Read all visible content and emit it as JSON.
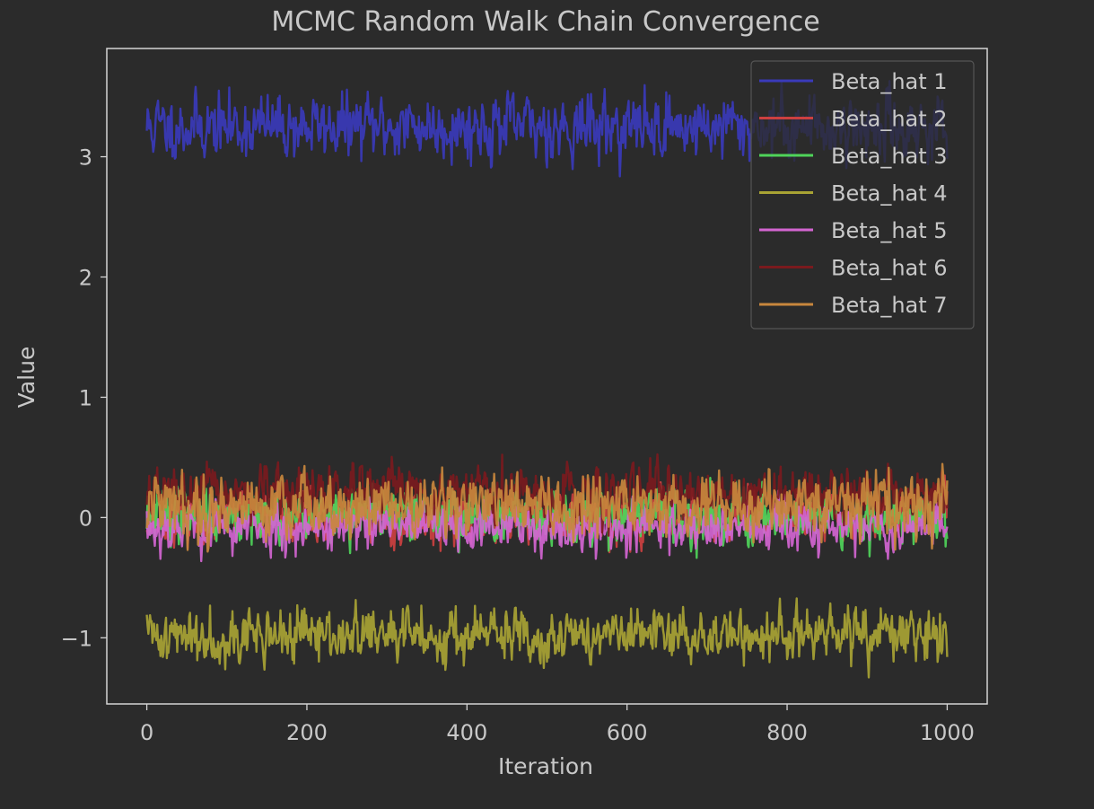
{
  "chart_data": {
    "type": "line",
    "title": "MCMC Random Walk Chain Convergence",
    "xlabel": "Iteration",
    "ylabel": "Value",
    "xlim": [
      -50,
      1050
    ],
    "ylim": [
      -1.55,
      3.9
    ],
    "xticks": [
      0,
      200,
      400,
      600,
      800,
      1000
    ],
    "yticks": [
      -1,
      0,
      1,
      2,
      3
    ],
    "xtick_labels": [
      "0",
      "200",
      "400",
      "600",
      "800",
      "1000"
    ],
    "ytick_labels": [
      "−1",
      "0",
      "1",
      "2",
      "3"
    ],
    "grid": false,
    "legend_position": "top-right",
    "theme": {
      "background": "#2b2b2b",
      "axes_color": "#d4d4d4",
      "text_color": "#c8c8c8",
      "legend_background": "#2b2b2b",
      "legend_border": "#555555"
    },
    "series": [
      {
        "name": "Beta_hat 1",
        "color": "#3a3aba",
        "mean": 3.25,
        "sd": 0.13,
        "seed": 11
      },
      {
        "name": "Beta_hat 2",
        "color": "#cc4040",
        "mean": 0.0,
        "sd": 0.1,
        "seed": 23
      },
      {
        "name": "Beta_hat 3",
        "color": "#4fd45a",
        "mean": 0.02,
        "sd": 0.11,
        "seed": 37
      },
      {
        "name": "Beta_hat 4",
        "color": "#a8a334",
        "mean": -0.98,
        "sd": 0.11,
        "seed": 41
      },
      {
        "name": "Beta_hat 5",
        "color": "#d365d1",
        "mean": -0.08,
        "sd": 0.1,
        "seed": 53
      },
      {
        "name": "Beta_hat 6",
        "color": "#7a1a1e",
        "mean": 0.2,
        "sd": 0.1,
        "seed": 67
      },
      {
        "name": "Beta_hat 7",
        "color": "#c8873d",
        "mean": 0.1,
        "sd": 0.13,
        "seed": 79
      }
    ],
    "n_iterations": 1000
  }
}
